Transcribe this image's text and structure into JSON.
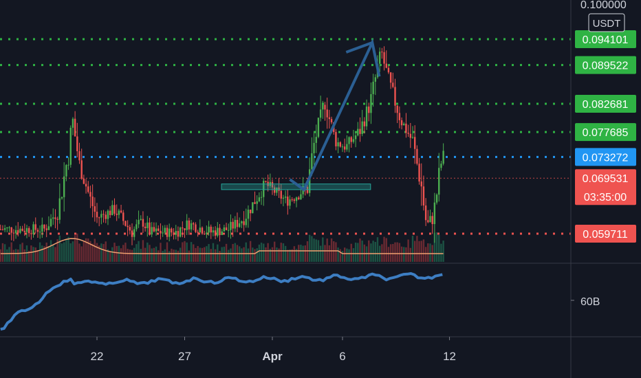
{
  "chart_data": {
    "type": "candlestick",
    "quote_currency": "USDT",
    "price_axis": {
      "min": 0.058,
      "max": 0.1,
      "top_tick": "0.100000"
    },
    "volume_axis_label": "60B",
    "x_ticks": [
      "22",
      "27",
      "Apr",
      "6",
      "12"
    ],
    "levels": [
      {
        "value": 0.094101,
        "label": "0.094101",
        "color": "#2fb344",
        "style": "dotted"
      },
      {
        "value": 0.089522,
        "label": "0.089522",
        "color": "#2fb344",
        "style": "dotted"
      },
      {
        "value": 0.082681,
        "label": "0.082681",
        "color": "#2fb344",
        "style": "dotted"
      },
      {
        "value": 0.077685,
        "label": "0.077685",
        "color": "#2fb344",
        "style": "dotted"
      },
      {
        "value": 0.073272,
        "label": "0.073272",
        "color": "#2196f3",
        "style": "dotted"
      },
      {
        "value": 0.069531,
        "label": "0.069531",
        "color": "#ef5350",
        "style": "dotted-thin",
        "countdown": "03:35:00"
      },
      {
        "value": 0.059711,
        "label": "0.059711",
        "color": "#ef5350",
        "style": "dotted"
      }
    ],
    "support_zone": {
      "low": 0.0675,
      "high": 0.0685,
      "x_start_day": 7.1,
      "x_end_day": 15.6
    },
    "projection_path": [
      {
        "day": 11.0,
        "price": 0.0693
      },
      {
        "day": 11.8,
        "price": 0.0675
      },
      {
        "day": 15.7,
        "price": 0.0935
      },
      {
        "day": 16.1,
        "price": 0.0875
      }
    ],
    "colors": {
      "up": "#4caf50",
      "down": "#ef5350",
      "ma": "#f0a070",
      "indicator": "#3d7ec3",
      "bg": "#131722",
      "grid_text": "#d1d4dc"
    }
  }
}
